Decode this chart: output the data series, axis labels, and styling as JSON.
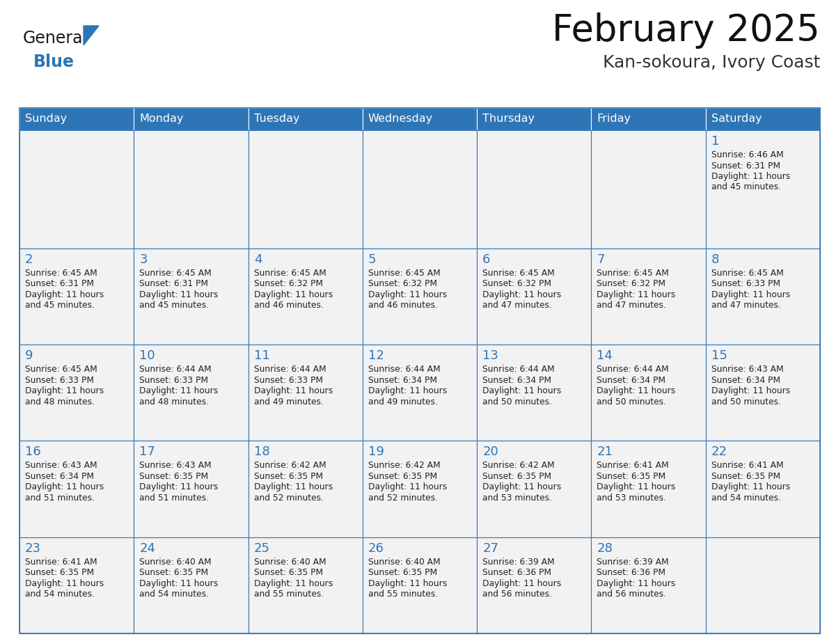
{
  "title": "February 2025",
  "subtitle": "Kan-sokoura, Ivory Coast",
  "header_color": "#2E75B6",
  "header_text_color": "#FFFFFF",
  "cell_border_color": "#2E75B6",
  "cell_bg_color": "#F2F2F2",
  "day_number_color": "#2E75B6",
  "text_color": "#222222",
  "background_color": "#FFFFFF",
  "days_of_week": [
    "Sunday",
    "Monday",
    "Tuesday",
    "Wednesday",
    "Thursday",
    "Friday",
    "Saturday"
  ],
  "weeks": [
    [
      {
        "day": null,
        "info": null
      },
      {
        "day": null,
        "info": null
      },
      {
        "day": null,
        "info": null
      },
      {
        "day": null,
        "info": null
      },
      {
        "day": null,
        "info": null
      },
      {
        "day": null,
        "info": null
      },
      {
        "day": 1,
        "sunrise": "6:46 AM",
        "sunset": "6:31 PM",
        "daylight": "11 hours",
        "daylight2": "and 45 minutes."
      }
    ],
    [
      {
        "day": 2,
        "sunrise": "6:45 AM",
        "sunset": "6:31 PM",
        "daylight": "11 hours",
        "daylight2": "and 45 minutes."
      },
      {
        "day": 3,
        "sunrise": "6:45 AM",
        "sunset": "6:31 PM",
        "daylight": "11 hours",
        "daylight2": "and 45 minutes."
      },
      {
        "day": 4,
        "sunrise": "6:45 AM",
        "sunset": "6:32 PM",
        "daylight": "11 hours",
        "daylight2": "and 46 minutes."
      },
      {
        "day": 5,
        "sunrise": "6:45 AM",
        "sunset": "6:32 PM",
        "daylight": "11 hours",
        "daylight2": "and 46 minutes."
      },
      {
        "day": 6,
        "sunrise": "6:45 AM",
        "sunset": "6:32 PM",
        "daylight": "11 hours",
        "daylight2": "and 47 minutes."
      },
      {
        "day": 7,
        "sunrise": "6:45 AM",
        "sunset": "6:32 PM",
        "daylight": "11 hours",
        "daylight2": "and 47 minutes."
      },
      {
        "day": 8,
        "sunrise": "6:45 AM",
        "sunset": "6:33 PM",
        "daylight": "11 hours",
        "daylight2": "and 47 minutes."
      }
    ],
    [
      {
        "day": 9,
        "sunrise": "6:45 AM",
        "sunset": "6:33 PM",
        "daylight": "11 hours",
        "daylight2": "and 48 minutes."
      },
      {
        "day": 10,
        "sunrise": "6:44 AM",
        "sunset": "6:33 PM",
        "daylight": "11 hours",
        "daylight2": "and 48 minutes."
      },
      {
        "day": 11,
        "sunrise": "6:44 AM",
        "sunset": "6:33 PM",
        "daylight": "11 hours",
        "daylight2": "and 49 minutes."
      },
      {
        "day": 12,
        "sunrise": "6:44 AM",
        "sunset": "6:34 PM",
        "daylight": "11 hours",
        "daylight2": "and 49 minutes."
      },
      {
        "day": 13,
        "sunrise": "6:44 AM",
        "sunset": "6:34 PM",
        "daylight": "11 hours",
        "daylight2": "and 50 minutes."
      },
      {
        "day": 14,
        "sunrise": "6:44 AM",
        "sunset": "6:34 PM",
        "daylight": "11 hours",
        "daylight2": "and 50 minutes."
      },
      {
        "day": 15,
        "sunrise": "6:43 AM",
        "sunset": "6:34 PM",
        "daylight": "11 hours",
        "daylight2": "and 50 minutes."
      }
    ],
    [
      {
        "day": 16,
        "sunrise": "6:43 AM",
        "sunset": "6:34 PM",
        "daylight": "11 hours",
        "daylight2": "and 51 minutes."
      },
      {
        "day": 17,
        "sunrise": "6:43 AM",
        "sunset": "6:35 PM",
        "daylight": "11 hours",
        "daylight2": "and 51 minutes."
      },
      {
        "day": 18,
        "sunrise": "6:42 AM",
        "sunset": "6:35 PM",
        "daylight": "11 hours",
        "daylight2": "and 52 minutes."
      },
      {
        "day": 19,
        "sunrise": "6:42 AM",
        "sunset": "6:35 PM",
        "daylight": "11 hours",
        "daylight2": "and 52 minutes."
      },
      {
        "day": 20,
        "sunrise": "6:42 AM",
        "sunset": "6:35 PM",
        "daylight": "11 hours",
        "daylight2": "and 53 minutes."
      },
      {
        "day": 21,
        "sunrise": "6:41 AM",
        "sunset": "6:35 PM",
        "daylight": "11 hours",
        "daylight2": "and 53 minutes."
      },
      {
        "day": 22,
        "sunrise": "6:41 AM",
        "sunset": "6:35 PM",
        "daylight": "11 hours",
        "daylight2": "and 54 minutes."
      }
    ],
    [
      {
        "day": 23,
        "sunrise": "6:41 AM",
        "sunset": "6:35 PM",
        "daylight": "11 hours",
        "daylight2": "and 54 minutes."
      },
      {
        "day": 24,
        "sunrise": "6:40 AM",
        "sunset": "6:35 PM",
        "daylight": "11 hours",
        "daylight2": "and 54 minutes."
      },
      {
        "day": 25,
        "sunrise": "6:40 AM",
        "sunset": "6:35 PM",
        "daylight": "11 hours",
        "daylight2": "and 55 minutes."
      },
      {
        "day": 26,
        "sunrise": "6:40 AM",
        "sunset": "6:35 PM",
        "daylight": "11 hours",
        "daylight2": "and 55 minutes."
      },
      {
        "day": 27,
        "sunrise": "6:39 AM",
        "sunset": "6:36 PM",
        "daylight": "11 hours",
        "daylight2": "and 56 minutes."
      },
      {
        "day": 28,
        "sunrise": "6:39 AM",
        "sunset": "6:36 PM",
        "daylight": "11 hours",
        "daylight2": "and 56 minutes."
      },
      {
        "day": null,
        "info": null
      }
    ]
  ],
  "logo_general_color": "#1A1A1A",
  "logo_blue_color": "#2E75B6",
  "figsize": [
    11.88,
    9.18
  ],
  "dpi": 100
}
